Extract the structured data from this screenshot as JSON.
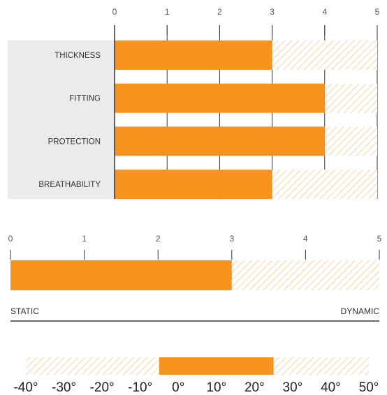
{
  "colors": {
    "bar": "#f7931e",
    "hatch": "#f7c48c",
    "label_bg": "#ebebeb",
    "axis": "#333333",
    "tick_text": "#555555"
  },
  "chart_data": [
    {
      "type": "bar",
      "orientation": "horizontal",
      "categories": [
        "THICKNESS",
        "FITTING",
        "PROTECTION",
        "BREATHABILITY"
      ],
      "values": [
        3,
        4,
        4,
        3
      ],
      "xlim": [
        0,
        5
      ],
      "ticks": [
        "0",
        "1",
        "2",
        "3",
        "4",
        "5"
      ],
      "remainder_style": "hatched",
      "grid": true
    },
    {
      "type": "bar",
      "orientation": "horizontal",
      "values": [
        3
      ],
      "xlim": [
        0,
        5
      ],
      "ticks": [
        "0",
        "1",
        "2",
        "3",
        "4",
        "5"
      ],
      "remainder_style": "hatched",
      "left_label": "STATIC",
      "right_label": "DYNAMIC"
    },
    {
      "type": "bar",
      "orientation": "horizontal",
      "range": [
        -5,
        25
      ],
      "xlim": [
        -40,
        50
      ],
      "ticks": [
        "-40°",
        "-30°",
        "-20°",
        "-10°",
        "0°",
        "10°",
        "20°",
        "30°",
        "40°",
        "50°"
      ],
      "remainder_style": "hatched"
    }
  ]
}
